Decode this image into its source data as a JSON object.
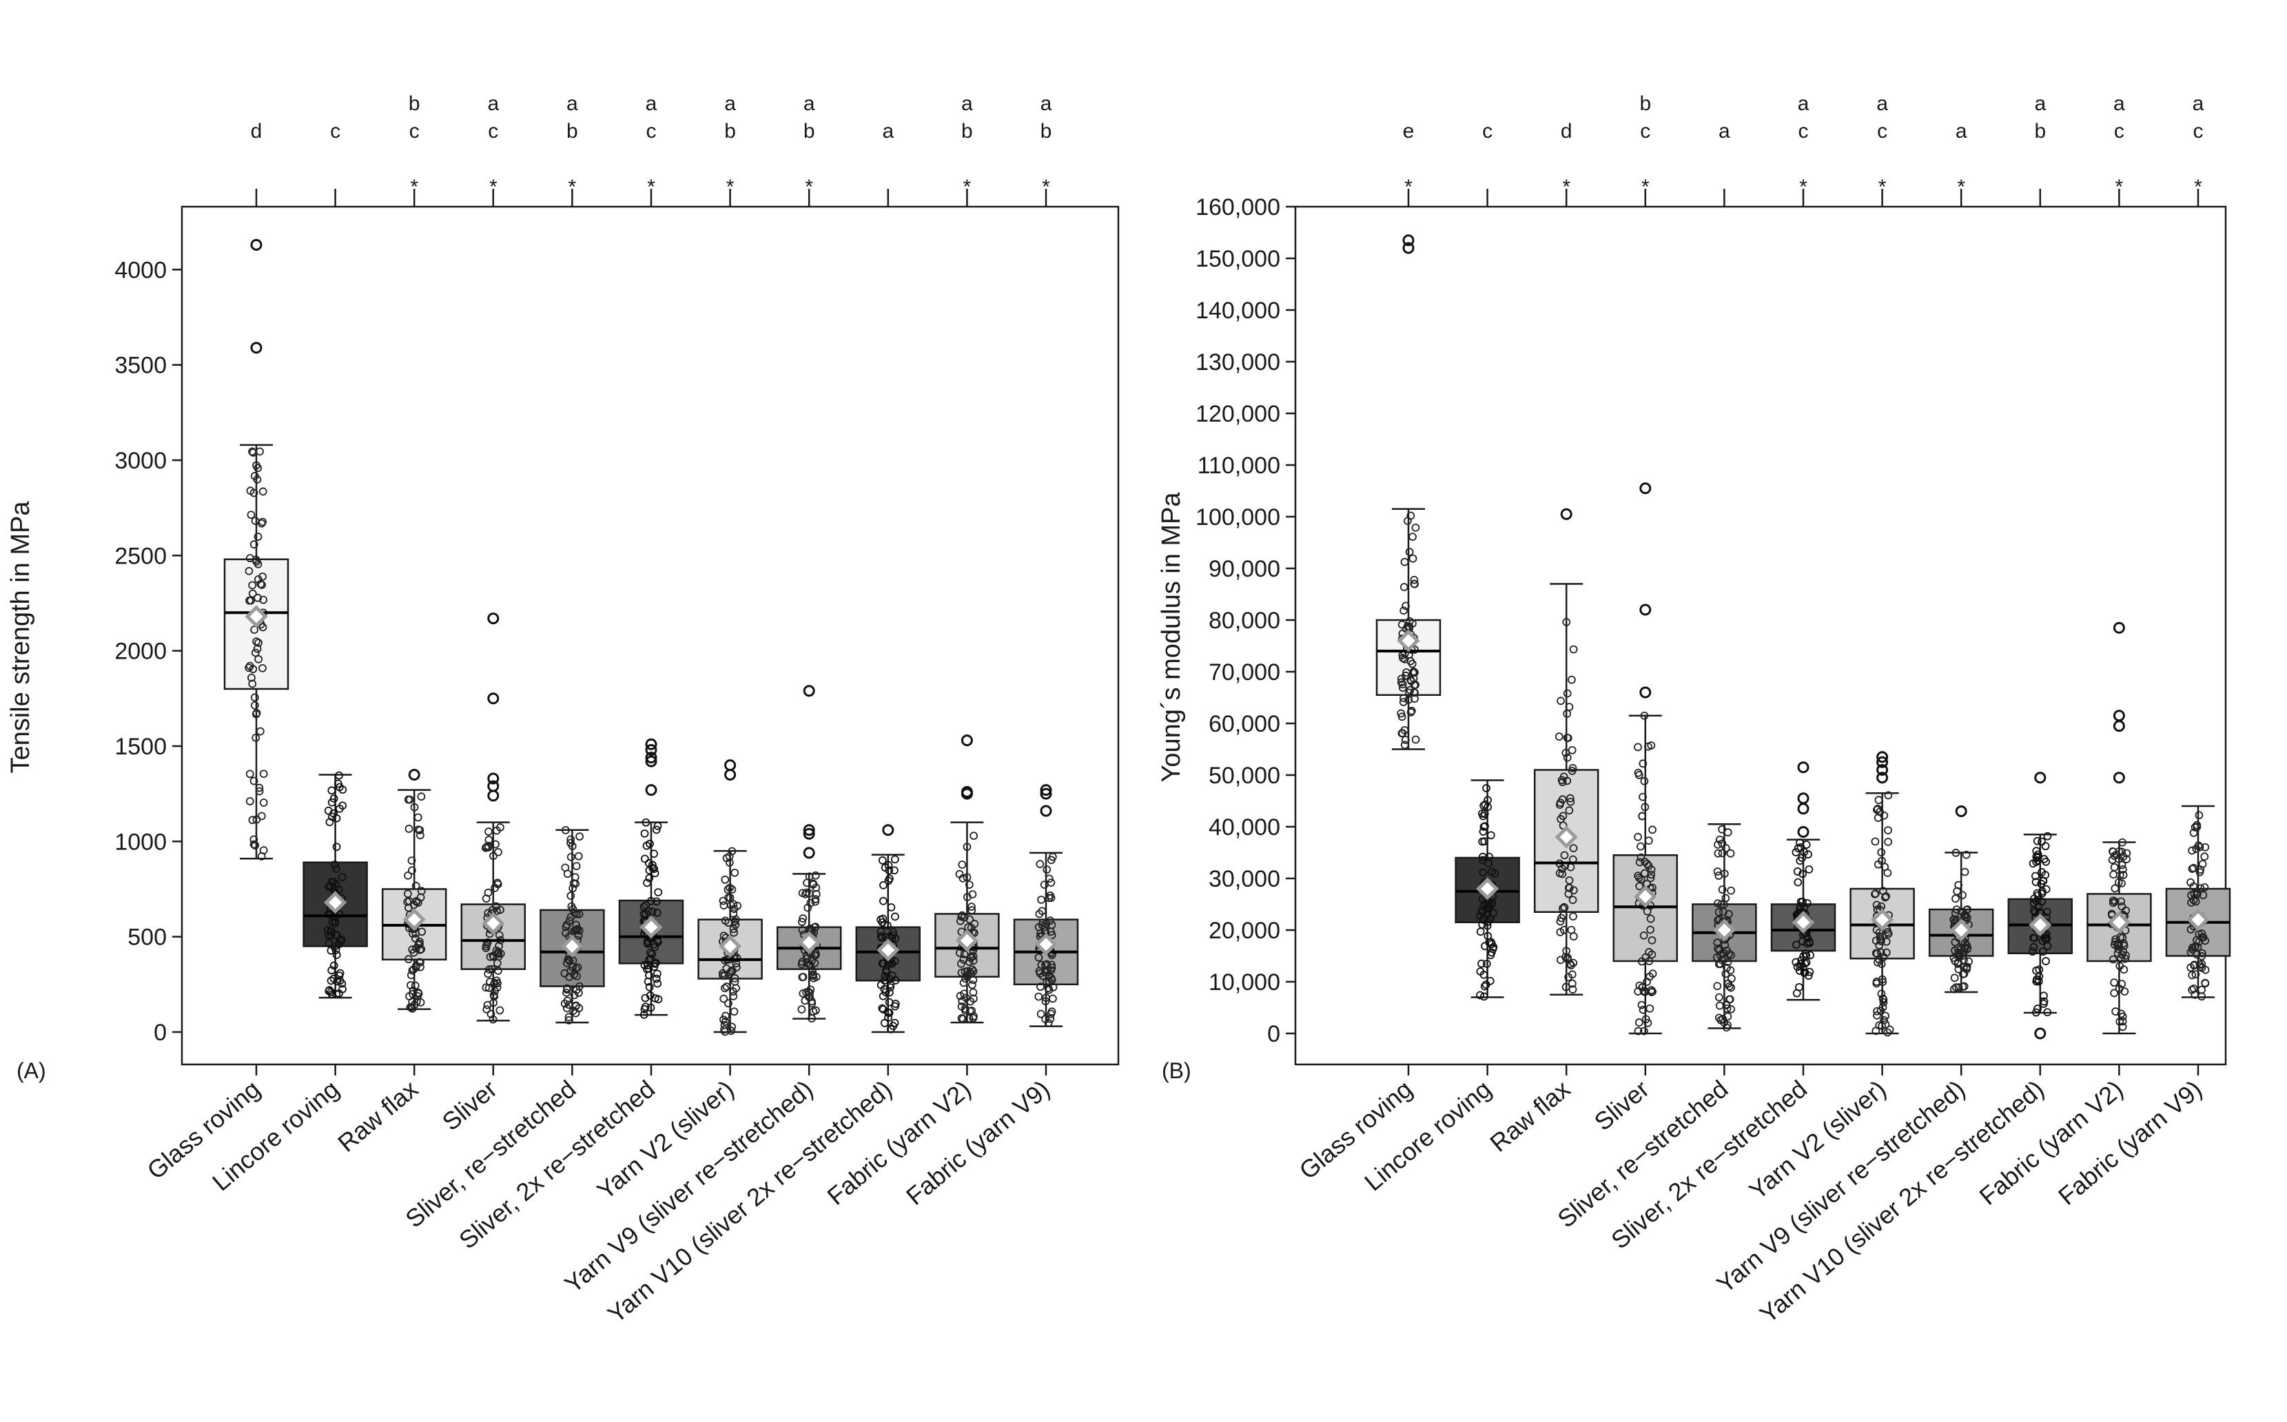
{
  "chart_data": [
    {
      "panel_label": "(A)",
      "type": "box",
      "ylabel": "Tensile strength in MPa",
      "xlabel": "",
      "ylim": [
        -170,
        4330
      ],
      "yticks": [
        0,
        500,
        1000,
        1500,
        2000,
        2500,
        3000,
        3500,
        4000
      ],
      "ytick_labels": [
        "0",
        "500",
        "1000",
        "1500",
        "2000",
        "2500",
        "3000",
        "3500",
        "4000"
      ],
      "categories": [
        "Glass roving",
        "Lincore roving",
        "Raw flax",
        "Sliver",
        "Sliver, re−stretched",
        "Sliver, 2x re−stretched",
        "Yarn V2 (sliver)",
        "Yarn V9 (sliver re−stretched)",
        "Yarn V10 (sliver 2x re−stretched)",
        "Fabric (yarn V2)",
        "Fabric (yarn V9)"
      ],
      "significance_letters": [
        [
          "d"
        ],
        [
          "c"
        ],
        [
          "b",
          "c"
        ],
        [
          "a",
          "c"
        ],
        [
          "a",
          "b"
        ],
        [
          "a",
          "c"
        ],
        [
          "a",
          "b"
        ],
        [
          "a",
          "b"
        ],
        [
          "a"
        ],
        [
          "a",
          "b"
        ],
        [
          "a",
          "b"
        ]
      ],
      "asterisk": [
        "",
        "",
        "*",
        "*",
        "*",
        "*",
        "*",
        "*",
        "",
        "*",
        "*"
      ],
      "boxes": [
        {
          "q1": 1800,
          "median": 2200,
          "q3": 2480,
          "whisker_low": 910,
          "whisker_high": 3080,
          "mean": 2180,
          "fill": "#f4f4f4",
          "outliers": [
            3590,
            4130
          ]
        },
        {
          "q1": 450,
          "median": 610,
          "q3": 890,
          "whisker_low": 180,
          "whisker_high": 1350,
          "mean": 680,
          "fill": "#333333",
          "outliers": []
        },
        {
          "q1": 380,
          "median": 560,
          "q3": 750,
          "whisker_low": 120,
          "whisker_high": 1270,
          "mean": 590,
          "fill": "#d8d8d8",
          "outliers": [
            1350
          ]
        },
        {
          "q1": 330,
          "median": 480,
          "q3": 670,
          "whisker_low": 60,
          "whisker_high": 1100,
          "mean": 570,
          "fill": "#c8c8c8",
          "outliers": [
            1240,
            1290,
            1330,
            1750,
            2170
          ]
        },
        {
          "q1": 240,
          "median": 420,
          "q3": 640,
          "whisker_low": 50,
          "whisker_high": 1060,
          "mean": 450,
          "fill": "#8c8c8c",
          "outliers": []
        },
        {
          "q1": 360,
          "median": 500,
          "q3": 690,
          "whisker_low": 90,
          "whisker_high": 1100,
          "mean": 550,
          "fill": "#5a5a5a",
          "outliers": [
            1270,
            1420,
            1440,
            1480,
            1510
          ]
        },
        {
          "q1": 280,
          "median": 380,
          "q3": 590,
          "whisker_low": 0,
          "whisker_high": 950,
          "mean": 450,
          "fill": "#d0d0d0",
          "outliers": [
            1350,
            1400
          ]
        },
        {
          "q1": 330,
          "median": 440,
          "q3": 550,
          "whisker_low": 70,
          "whisker_high": 830,
          "mean": 470,
          "fill": "#9a9a9a",
          "outliers": [
            940,
            1040,
            1060,
            1790
          ]
        },
        {
          "q1": 270,
          "median": 420,
          "q3": 550,
          "whisker_low": 0,
          "whisker_high": 930,
          "mean": 430,
          "fill": "#4d4d4d",
          "outliers": [
            1060
          ]
        },
        {
          "q1": 290,
          "median": 440,
          "q3": 620,
          "whisker_low": 50,
          "whisker_high": 1100,
          "mean": 480,
          "fill": "#c4c4c4",
          "outliers": [
            1250,
            1260,
            1530
          ]
        },
        {
          "q1": 250,
          "median": 420,
          "q3": 590,
          "whisker_low": 30,
          "whisker_high": 940,
          "mean": 460,
          "fill": "#a8a8a8",
          "outliers": [
            1160,
            1250,
            1270
          ]
        }
      ]
    },
    {
      "panel_label": "(B)",
      "type": "box",
      "ylabel": "Young´s modulus in MPa",
      "xlabel": "",
      "ylim": [
        -6000,
        160000
      ],
      "yticks": [
        0,
        10000,
        20000,
        30000,
        40000,
        50000,
        60000,
        70000,
        80000,
        90000,
        100000,
        110000,
        120000,
        130000,
        140000,
        150000,
        160000
      ],
      "ytick_labels": [
        "0",
        "10,000",
        "20,000",
        "30,000",
        "40,000",
        "50,000",
        "60,000",
        "70,000",
        "80,000",
        "90,000",
        "100,000",
        "110,000",
        "120,000",
        "130,000",
        "140,000",
        "150,000",
        "160,000"
      ],
      "categories": [
        "Glass roving",
        "Lincore roving",
        "Raw flax",
        "Sliver",
        "Sliver, re−stretched",
        "Sliver, 2x re−stretched",
        "Yarn V2 (sliver)",
        "Yarn V9 (sliver re−stretched)",
        "Yarn V10 (sliver 2x re−stretched)",
        "Fabric (yarn V2)",
        "Fabric (yarn V9)"
      ],
      "significance_letters": [
        [
          "e"
        ],
        [
          "c"
        ],
        [
          "d"
        ],
        [
          "b",
          "c"
        ],
        [
          "a"
        ],
        [
          "a",
          "c"
        ],
        [
          "a",
          "c"
        ],
        [
          "a"
        ],
        [
          "a",
          "b"
        ],
        [
          "a",
          "c"
        ],
        [
          "a",
          "c"
        ]
      ],
      "asterisk": [
        "*",
        "",
        "*",
        "*",
        "",
        "*",
        "*",
        "*",
        "",
        "*",
        "*"
      ],
      "boxes": [
        {
          "q1": 65500,
          "median": 74000,
          "q3": 80000,
          "whisker_low": 55000,
          "whisker_high": 101500,
          "mean": 76000,
          "fill": "#f4f4f4",
          "outliers": [
            152000,
            153500
          ]
        },
        {
          "q1": 21500,
          "median": 27500,
          "q3": 34000,
          "whisker_low": 7000,
          "whisker_high": 49000,
          "mean": 28000,
          "fill": "#333333",
          "outliers": []
        },
        {
          "q1": 23500,
          "median": 33000,
          "q3": 51000,
          "whisker_low": 7500,
          "whisker_high": 87000,
          "mean": 38000,
          "fill": "#d8d8d8",
          "outliers": [
            100500
          ]
        },
        {
          "q1": 14000,
          "median": 24500,
          "q3": 34500,
          "whisker_low": 0,
          "whisker_high": 61500,
          "mean": 26500,
          "fill": "#c8c8c8",
          "outliers": [
            66000,
            82000,
            105500
          ]
        },
        {
          "q1": 14000,
          "median": 19500,
          "q3": 25000,
          "whisker_low": 1000,
          "whisker_high": 40500,
          "mean": 20000,
          "fill": "#8c8c8c",
          "outliers": []
        },
        {
          "q1": 16000,
          "median": 20000,
          "q3": 25000,
          "whisker_low": 6500,
          "whisker_high": 37500,
          "mean": 21500,
          "fill": "#5a5a5a",
          "outliers": [
            39000,
            43500,
            45500,
            51500
          ]
        },
        {
          "q1": 14500,
          "median": 21000,
          "q3": 28000,
          "whisker_low": 0,
          "whisker_high": 46500,
          "mean": 22000,
          "fill": "#d0d0d0",
          "outliers": [
            49500,
            51000,
            52500,
            53500
          ]
        },
        {
          "q1": 15000,
          "median": 19000,
          "q3": 24000,
          "whisker_low": 8000,
          "whisker_high": 35000,
          "mean": 20000,
          "fill": "#9a9a9a",
          "outliers": [
            43000
          ]
        },
        {
          "q1": 15500,
          "median": 21000,
          "q3": 26000,
          "whisker_low": 4000,
          "whisker_high": 38500,
          "mean": 21000,
          "fill": "#4d4d4d",
          "outliers": [
            0,
            49500
          ]
        },
        {
          "q1": 14000,
          "median": 21000,
          "q3": 27000,
          "whisker_low": 0,
          "whisker_high": 37000,
          "mean": 21500,
          "fill": "#c4c4c4",
          "outliers": [
            49500,
            59500,
            61500,
            78500
          ]
        },
        {
          "q1": 15000,
          "median": 21500,
          "q3": 28000,
          "whisker_low": 7000,
          "whisker_high": 44000,
          "mean": 22000,
          "fill": "#a8a8a8",
          "outliers": []
        }
      ]
    }
  ]
}
